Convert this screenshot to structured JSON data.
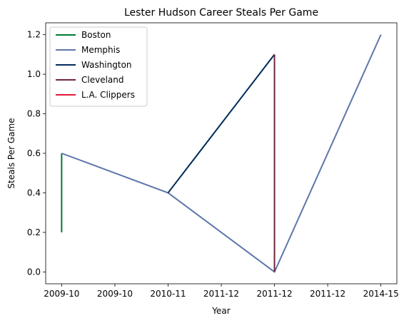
{
  "chart_data": {
    "type": "line",
    "title": "Lester Hudson Career Steals Per Game",
    "xlabel": "Year",
    "ylabel": "Steals Per Game",
    "x_ticks": [
      "2009-10",
      "2009-10",
      "2010-11",
      "2011-12",
      "2011-12",
      "2011-12",
      "2014-15"
    ],
    "ylim": [
      -0.06,
      1.26
    ],
    "y_ticks": [
      0.0,
      0.2,
      0.4,
      0.6,
      0.8,
      1.0,
      1.2
    ],
    "legend_position": "upper-left",
    "grid": false,
    "series": [
      {
        "name": "Boston",
        "color": "#007A33",
        "points": [
          [
            0,
            0.2
          ],
          [
            0,
            0.6
          ]
        ]
      },
      {
        "name": "Memphis",
        "color": "#5D76A9",
        "points": [
          [
            0,
            0.6
          ],
          [
            2,
            0.4
          ],
          [
            4,
            0.0
          ],
          [
            6,
            1.2
          ]
        ]
      },
      {
        "name": "Washington",
        "color": "#002B5C",
        "points": [
          [
            2,
            0.4
          ],
          [
            4,
            1.1
          ]
        ]
      },
      {
        "name": "Cleveland",
        "color": "#6F263D",
        "points": [
          [
            4,
            1.1
          ],
          [
            4,
            0.0
          ]
        ]
      },
      {
        "name": "L.A. Clippers",
        "color": "#E31837",
        "points": []
      }
    ]
  }
}
